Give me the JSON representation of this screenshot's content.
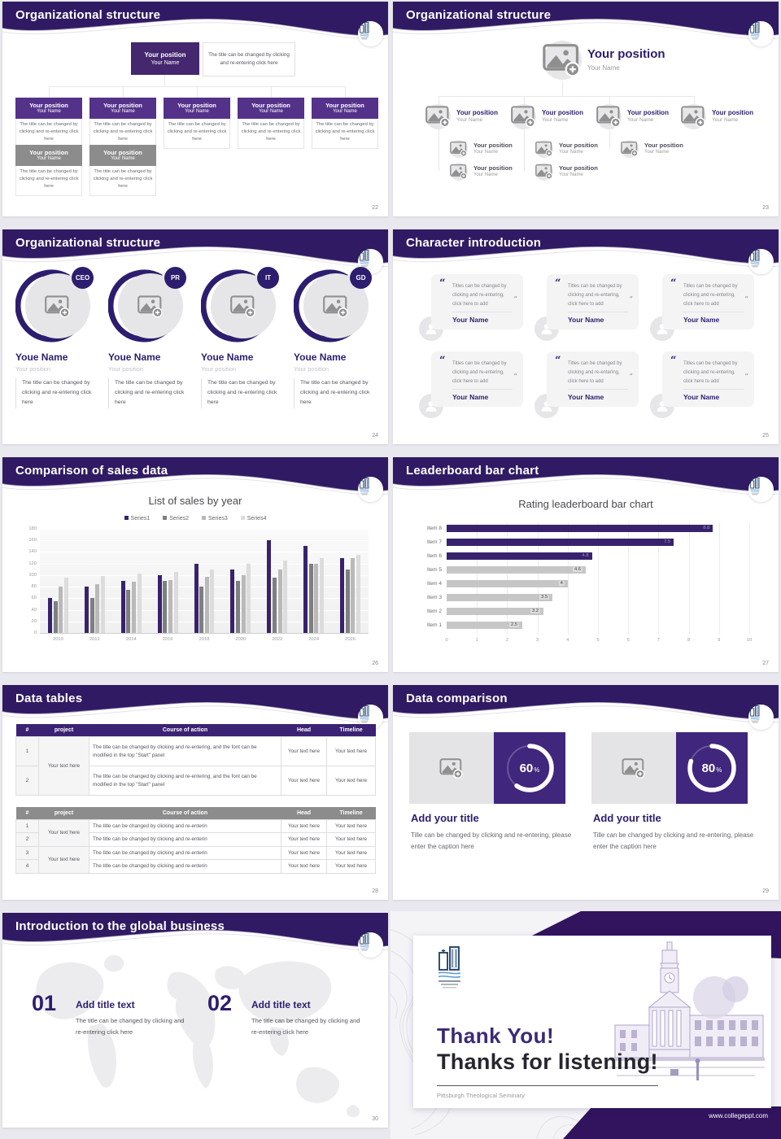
{
  "colors": {
    "header_purple": "#301a63",
    "box_purple": "#54328a",
    "box_gray": "#8c8c8c",
    "chart_purple": "#38226d",
    "ring_purple": "#40267c"
  },
  "common": {
    "position_label": "Your position",
    "name_label": "Your Name"
  },
  "slides": {
    "s22": {
      "title": "Organizational structure",
      "page": "22",
      "top": {
        "position": "Your position",
        "name": "Your Name"
      },
      "top_caption": "The title can be changed by clicking and re-entering click here",
      "node_position": "Your position",
      "node_name": "Your Name",
      "node_caption": "The title can be changed by clicking and re-entering click here"
    },
    "s23": {
      "title": "Organizational structure",
      "page": "23",
      "root": {
        "position": "Your position",
        "name": "Your Name"
      },
      "node_position": "Your position",
      "node_name": "Your Name"
    },
    "s24": {
      "title": "Organizational structure",
      "page": "24",
      "badges": [
        "CEO",
        "PR",
        "IT",
        "GD"
      ],
      "name": "Youe Name",
      "position": "Your position",
      "caption": "The title can be changed by clicking and re-entering click here"
    },
    "s25": {
      "title": "Character introduction",
      "page": "25",
      "quote": "Titles can be changed by clicking and re-entering, click here to add",
      "name": "Your Name",
      "open_quote": "“",
      "close_quote": "”"
    },
    "s26": {
      "title": "Comparison of sales data",
      "page": "26"
    },
    "s27": {
      "title": "Leaderboard bar chart",
      "page": "27"
    },
    "s28": {
      "title": "Data tables",
      "page": "28",
      "headers": [
        "#",
        "project",
        "Course of action",
        "Head",
        "Timeline"
      ],
      "t1": {
        "project": "Your text here",
        "rows": [
          {
            "n": "1",
            "course": "The title can be changed by clicking and re-entering, and the font can be modified in the top \"Start\" panel",
            "head": "Your text here",
            "timeline": "Your text here"
          },
          {
            "n": "2",
            "course": "The title can be changed by clicking and re-entering, and the font can be modified in the top \"Start\" panel",
            "head": "Your text here",
            "timeline": "Your text here"
          }
        ]
      },
      "t2": {
        "projects": [
          "Your text here",
          "Your text here"
        ],
        "rows": [
          {
            "n": "1",
            "course": "The title can be changed by clicking and re-enterin",
            "head": "Your text here",
            "timeline": "Your text here"
          },
          {
            "n": "2",
            "course": "The title can be changed by clicking and re-enterin",
            "head": "Your text here",
            "timeline": "Your text here"
          },
          {
            "n": "3",
            "course": "The title can be changed by clicking and re-enterin",
            "head": "Your text here",
            "timeline": "Your text here"
          },
          {
            "n": "4",
            "course": "The title can be changed by clicking and re-enterin",
            "head": "Your text here",
            "timeline": "Your text here"
          }
        ]
      }
    },
    "s29": {
      "title": "Data comparison",
      "page": "29",
      "unit": "%",
      "cards": [
        {
          "percent": "60"
        },
        {
          "percent": "80"
        }
      ],
      "card_title": "Add your title",
      "card_caption": "Tille can be changed by clicking and re-entering, please enter the caption here"
    },
    "s30": {
      "title": "Introduction to the global business",
      "page": "30",
      "items": [
        {
          "num": "01"
        },
        {
          "num": "02"
        }
      ],
      "item_title": "Add title text",
      "item_caption": "The title can be changed by clicking and re-entering click here"
    },
    "s31": {
      "thank_you": "Thank You!",
      "subtitle": "Thanks for listening!",
      "org": "Pittsburgh Theological Seminary",
      "url": "www.collegeppt.com"
    }
  },
  "chart_data": [
    {
      "type": "bar",
      "title": "List of sales by year",
      "categories": [
        "2010",
        "2012",
        "2014",
        "2016",
        "2018",
        "2020",
        "2022",
        "2024",
        "2026"
      ],
      "series": [
        {
          "name": "Series1",
          "color": "#38226d",
          "values": [
            60,
            80,
            90,
            100,
            120,
            110,
            160,
            150,
            130
          ]
        },
        {
          "name": "Series2",
          "color": "#7f7f7f",
          "values": [
            55,
            60,
            75,
            90,
            80,
            90,
            95,
            120,
            110
          ]
        },
        {
          "name": "Series3",
          "color": "#b9b9b9",
          "values": [
            80,
            85,
            88,
            92,
            97,
            100,
            110,
            120,
            130
          ]
        },
        {
          "name": "Series4",
          "color": "#dcdcdc",
          "values": [
            95,
            98,
            102,
            105,
            110,
            120,
            125,
            130,
            135
          ]
        }
      ],
      "xlabel": "",
      "ylabel": "",
      "ylim": [
        0,
        180
      ],
      "ytick_step": 20,
      "grid": true,
      "legend_position": "top"
    },
    {
      "type": "bar-horizontal",
      "title": "Rating leaderboard bar chart",
      "categories": [
        "Item 8",
        "Item 7",
        "Item 6",
        "Item 5",
        "Item 4",
        "Item 3",
        "Item 2",
        "Item 1"
      ],
      "values": [
        8.8,
        7.5,
        4.8,
        4.6,
        4,
        3.5,
        3.2,
        2.5
      ],
      "value_labels": [
        "8.8",
        "7.5",
        "4.8",
        "4.6",
        "4",
        "3.5",
        "3.2",
        "2.5"
      ],
      "colors": [
        "#38226d",
        "#38226d",
        "#38226d",
        "#c6c6c6",
        "#c6c6c6",
        "#c6c6c6",
        "#c6c6c6",
        "#c6c6c6"
      ],
      "xlabel": "",
      "ylabel": "",
      "xlim": [
        0,
        10
      ],
      "xtick_step": 1,
      "grid": true,
      "legend_position": "none"
    }
  ]
}
